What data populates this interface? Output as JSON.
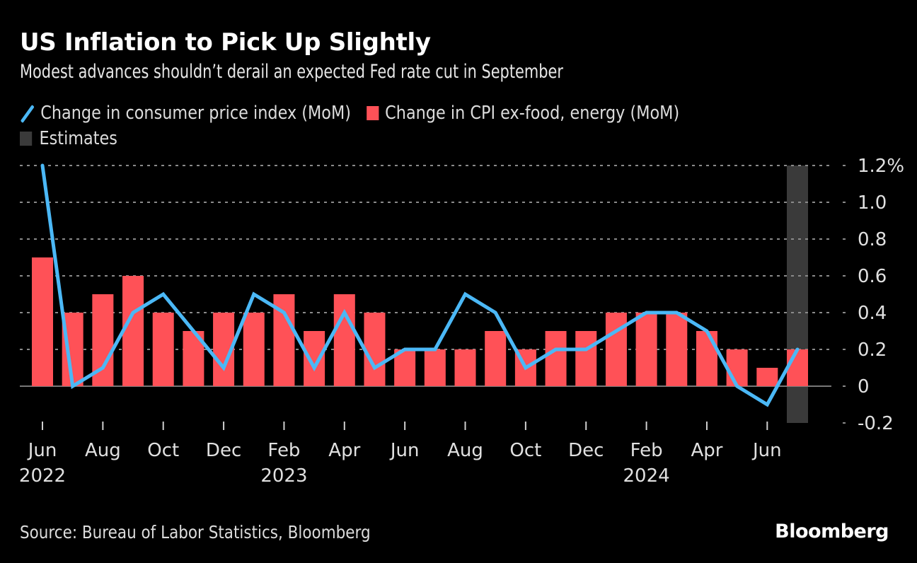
{
  "header": {
    "title": "US Inflation to Pick Up Slightly",
    "subtitle": "Modest advances shouldn’t derail an expected Fed rate cut in September"
  },
  "legend": {
    "items": [
      {
        "label": "Change in consumer price index (MoM)",
        "icon": "line-swatch-icon",
        "color": "#4bb8f6"
      },
      {
        "label": "Change in CPI ex-food, energy (MoM)",
        "icon": "bar-swatch-icon",
        "color": "#ff5157"
      },
      {
        "label": "Estimates",
        "icon": "shade-swatch-icon",
        "color": "#3a3a3a"
      }
    ]
  },
  "footer": {
    "source": "Source: Bureau of Labor Statistics, Bloomberg",
    "brand": "Bloomberg"
  },
  "chart_data": {
    "type": "bar",
    "title": "US Inflation to Pick Up Slightly",
    "subtitle": "Modest advances shouldn’t derail an expected Fed rate cut in September",
    "xlabel": "",
    "ylabel": "",
    "y_axis_position": "right",
    "ylim": [
      -0.2,
      1.2
    ],
    "yticks": [
      -0.2,
      0,
      0.2,
      0.4,
      0.6,
      0.8,
      1.0,
      1.2
    ],
    "ytick_labels": [
      "-0.2",
      "0",
      "0.2",
      "0.4",
      "0.6",
      "0.8",
      "1.0",
      "1.2%"
    ],
    "grid": true,
    "legend_position": "top-left",
    "categories": [
      "Jun 2022",
      "Jul 2022",
      "Aug 2022",
      "Sep 2022",
      "Oct 2022",
      "Nov 2022",
      "Dec 2022",
      "Jan 2023",
      "Feb 2023",
      "Mar 2023",
      "Apr 2023",
      "May 2023",
      "Jun 2023",
      "Jul 2023",
      "Aug 2023",
      "Sep 2023",
      "Oct 2023",
      "Nov 2023",
      "Dec 2023",
      "Jan 2024",
      "Feb 2024",
      "Mar 2024",
      "Apr 2024",
      "May 2024",
      "Jun 2024",
      "Jul 2024"
    ],
    "xtick_labels": [
      {
        "index": 0,
        "month": "Jun",
        "year": "2022"
      },
      {
        "index": 2,
        "month": "Aug",
        "year": ""
      },
      {
        "index": 4,
        "month": "Oct",
        "year": ""
      },
      {
        "index": 6,
        "month": "Dec",
        "year": ""
      },
      {
        "index": 8,
        "month": "Feb",
        "year": "2023"
      },
      {
        "index": 10,
        "month": "Apr",
        "year": ""
      },
      {
        "index": 12,
        "month": "Jun",
        "year": ""
      },
      {
        "index": 14,
        "month": "Aug",
        "year": ""
      },
      {
        "index": 16,
        "month": "Oct",
        "year": ""
      },
      {
        "index": 18,
        "month": "Dec",
        "year": ""
      },
      {
        "index": 20,
        "month": "Feb",
        "year": "2024"
      },
      {
        "index": 22,
        "month": "Apr",
        "year": ""
      },
      {
        "index": 24,
        "month": "Jun",
        "year": ""
      }
    ],
    "series": [
      {
        "name": "Change in CPI ex-food, energy (MoM)",
        "type": "bar",
        "color": "#ff5157",
        "values": [
          0.7,
          0.4,
          0.5,
          0.6,
          0.4,
          0.3,
          0.4,
          0.4,
          0.5,
          0.3,
          0.5,
          0.4,
          0.2,
          0.2,
          0.2,
          0.3,
          0.2,
          0.3,
          0.3,
          0.4,
          0.4,
          0.4,
          0.3,
          0.2,
          0.1,
          0.2
        ]
      },
      {
        "name": "Change in consumer price index (MoM)",
        "type": "line",
        "color": "#4bb8f6",
        "values": [
          1.2,
          0.0,
          0.1,
          0.4,
          0.5,
          0.3,
          0.1,
          0.5,
          0.4,
          0.1,
          0.4,
          0.1,
          0.2,
          0.2,
          0.5,
          0.4,
          0.1,
          0.2,
          0.2,
          0.3,
          0.4,
          0.4,
          0.3,
          0.0,
          -0.1,
          0.2
        ]
      }
    ],
    "estimates": {
      "label": "Estimates",
      "categories": [
        "Jul 2024"
      ],
      "color": "#3a3a3a"
    }
  }
}
